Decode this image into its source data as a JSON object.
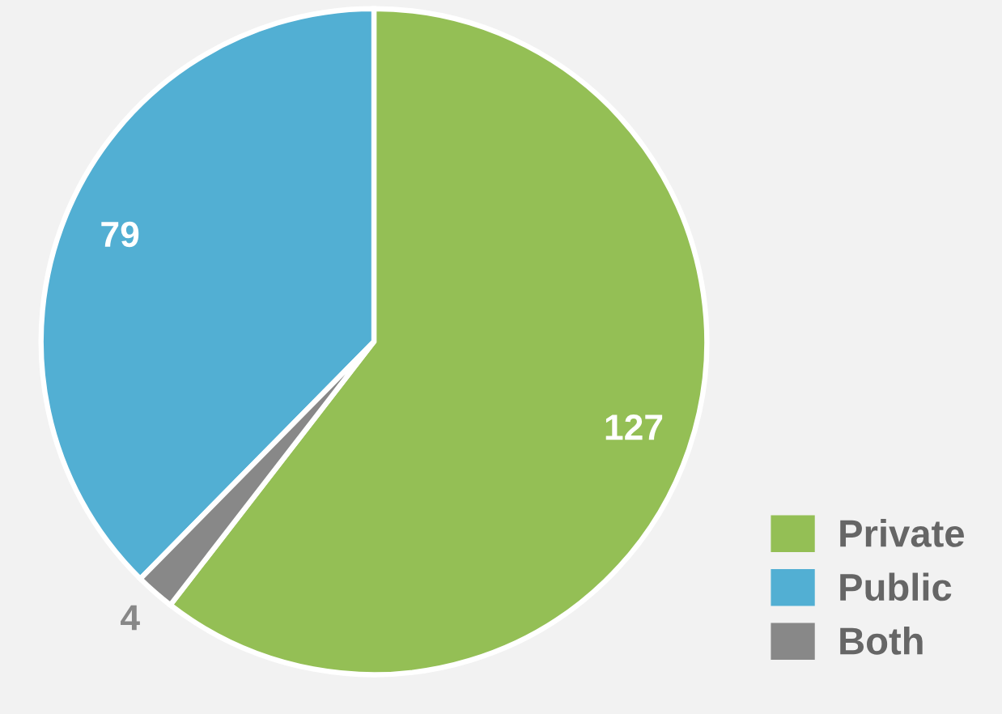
{
  "chart_data": {
    "type": "pie",
    "categories": [
      "Private",
      "Public",
      "Both"
    ],
    "values": [
      127,
      79,
      4
    ],
    "colors": [
      "#94bf55",
      "#52afd3",
      "#888888"
    ],
    "data_labels": true,
    "legend": "bottom right"
  }
}
